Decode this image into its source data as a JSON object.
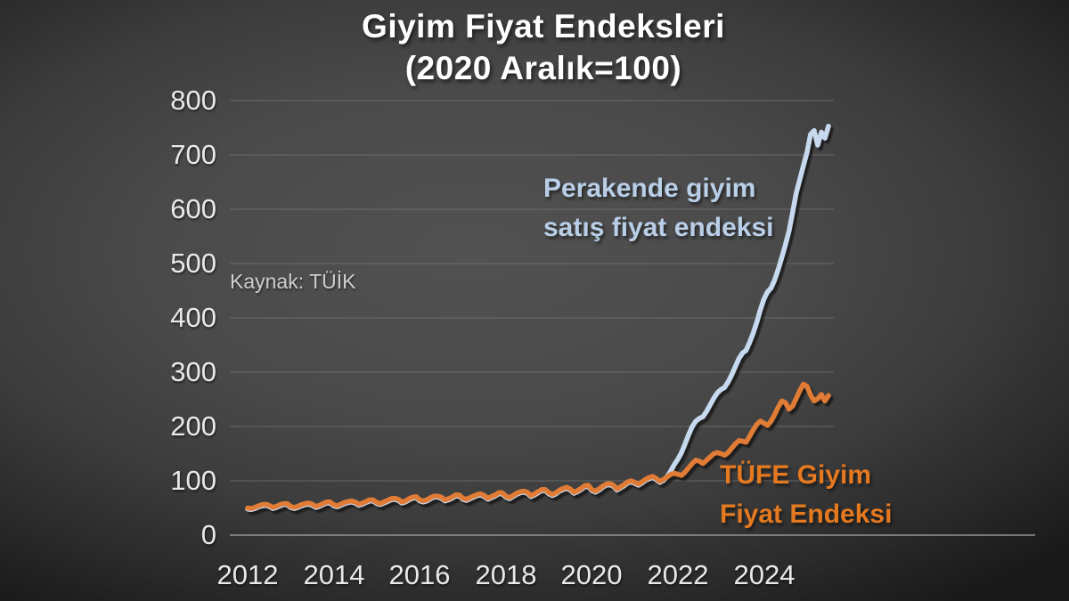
{
  "title": {
    "line1": "Giyim Fiyat Endeksleri",
    "line2": "(2020 Aralık=100)"
  },
  "source_note": "Kaynak: TÜİK",
  "series_labels": {
    "retail": {
      "line1": "Perakende giyim",
      "line2": "satış fiyat endeksi"
    },
    "tufe": {
      "line1": "TÜFE Giyim",
      "line2": "Fiyat Endeksi"
    }
  },
  "colors": {
    "background_center": "#525252",
    "background_edge": "#181818",
    "grid": "#7b7b7b",
    "axis": "#9b9b9b",
    "title_text": "#ffffff",
    "tick_text": "#e9e9e9",
    "source_text": "#cdcdcd",
    "retail_line": "#c6d9ee",
    "retail_label_text": "#b9cfe8",
    "tufe_line": "#e07b35",
    "tufe_label_text": "#e4791f"
  },
  "chart_data": {
    "type": "line",
    "title": "Giyim Fiyat Endeksleri (2020 Aralık=100)",
    "source": "Kaynak: TÜİK",
    "x_start": "2012-01",
    "x_end": "2025-07",
    "frequency": "monthly",
    "ylim": [
      0,
      800
    ],
    "y_ticks": [
      0,
      100,
      200,
      300,
      400,
      500,
      600,
      700,
      800
    ],
    "x_ticks": [
      2012,
      2014,
      2016,
      2018,
      2020,
      2022,
      2024
    ],
    "grid": "horizontal-only",
    "legend": "inline-text-labels",
    "series": [
      {
        "name": "Perakende giyim satış fiyat endeksi",
        "color": "#c6d9ee",
        "values": [
          48,
          47,
          49,
          52,
          54,
          55,
          53,
          49,
          51,
          54,
          56,
          56,
          51,
          49,
          51,
          54,
          56,
          57,
          55,
          51,
          53,
          56,
          59,
          59,
          54,
          52,
          55,
          58,
          60,
          61,
          59,
          55,
          57,
          60,
          63,
          63,
          58,
          56,
          59,
          62,
          65,
          66,
          64,
          59,
          61,
          65,
          68,
          69,
          63,
          61,
          63,
          67,
          70,
          70,
          68,
          63,
          65,
          68,
          72,
          72,
          66,
          64,
          67,
          70,
          73,
          74,
          71,
          66,
          69,
          72,
          76,
          76,
          70,
          67,
          71,
          75,
          78,
          79,
          77,
          71,
          74,
          78,
          82,
          82,
          76,
          73,
          76,
          81,
          84,
          86,
          83,
          77,
          80,
          84,
          89,
          90,
          82,
          79,
          83,
          88,
          92,
          93,
          90,
          83,
          87,
          91,
          96,
          98,
          95,
          92,
          96,
          101,
          104,
          106,
          102,
          97,
          101,
          108,
          118,
          130,
          140,
          152,
          168,
          185,
          200,
          210,
          215,
          218,
          228,
          240,
          252,
          262,
          268,
          272,
          282,
          295,
          310,
          325,
          335,
          340,
          355,
          372,
          392,
          415,
          435,
          448,
          455,
          470,
          490,
          512,
          535,
          560,
          595,
          630,
          655,
          680,
          705,
          738,
          745,
          718,
          742,
          731,
          753
        ]
      },
      {
        "name": "TÜFE Giyim Fiyat Endeksi",
        "color": "#e07b35",
        "values": [
          50,
          49,
          51,
          54,
          56,
          57,
          55,
          51,
          53,
          56,
          58,
          58,
          53,
          51,
          53,
          56,
          58,
          59,
          57,
          53,
          55,
          58,
          61,
          61,
          56,
          54,
          57,
          60,
          62,
          63,
          61,
          57,
          59,
          62,
          65,
          65,
          60,
          58,
          61,
          64,
          67,
          68,
          66,
          61,
          63,
          67,
          70,
          71,
          65,
          63,
          65,
          69,
          72,
          72,
          70,
          65,
          67,
          70,
          74,
          74,
          68,
          66,
          69,
          72,
          75,
          76,
          73,
          68,
          71,
          74,
          78,
          78,
          72,
          69,
          73,
          77,
          80,
          81,
          79,
          73,
          76,
          80,
          84,
          84,
          78,
          75,
          78,
          83,
          86,
          88,
          85,
          79,
          82,
          86,
          91,
          92,
          84,
          81,
          85,
          90,
          94,
          95,
          92,
          85,
          89,
          93,
          98,
          100,
          97,
          94,
          98,
          103,
          106,
          108,
          104,
          99,
          103,
          107,
          112,
          114,
          112,
          110,
          116,
          124,
          132,
          138,
          136,
          132,
          138,
          144,
          150,
          152,
          150,
          147,
          152,
          160,
          168,
          174,
          173,
          171,
          182,
          194,
          204,
          210,
          206,
          202,
          210,
          222,
          236,
          247,
          244,
          232,
          238,
          252,
          266,
          278,
          274,
          258,
          247,
          251,
          259,
          247,
          257
        ]
      }
    ]
  }
}
